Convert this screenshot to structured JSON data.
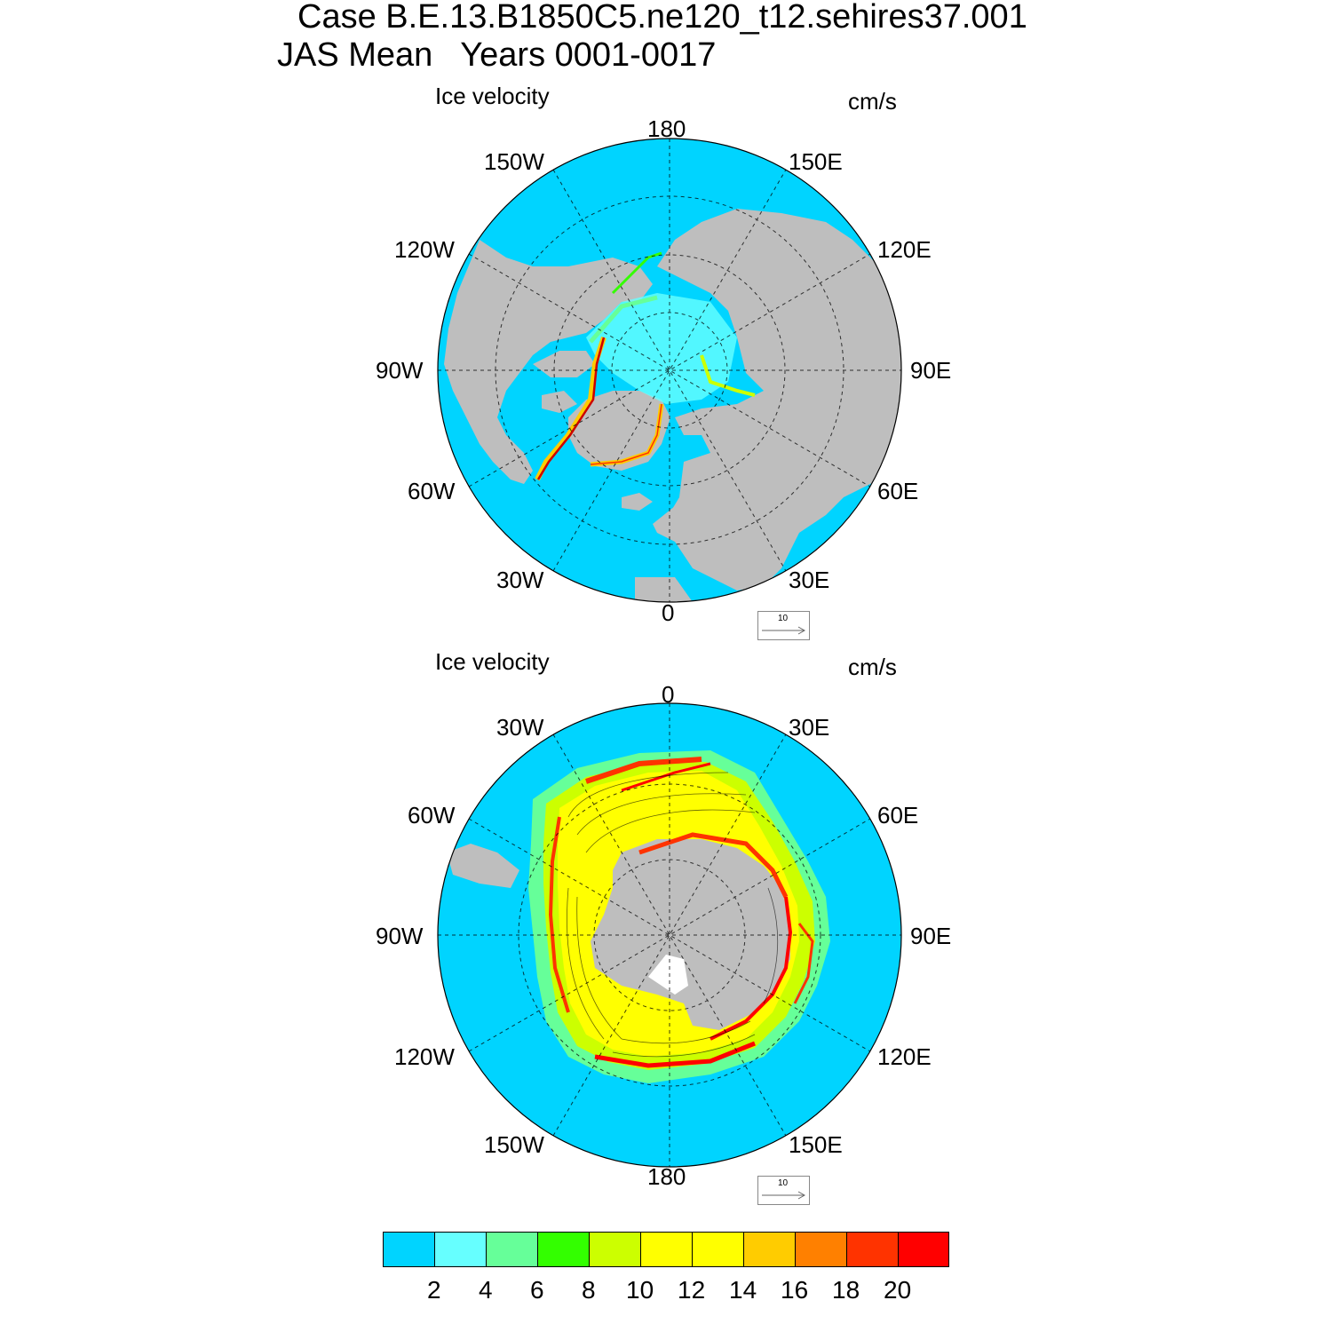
{
  "titles": {
    "line1": "Case B.E.13.B1850C5.ne120_t12.sehires37.001",
    "line2": "JAS Mean   Years 0001-0017"
  },
  "north": {
    "field_label": "Ice velocity",
    "units": "cm/s",
    "lon_labels": {
      "top": "180",
      "bottom": "0",
      "left": "90W",
      "right": "90E",
      "ul1": "150W",
      "ul2": "120W",
      "ur1": "150E",
      "ur2": "120E",
      "ll1": "60W",
      "ll2": "30W",
      "lr1": "60E",
      "lr2": "30E"
    },
    "ref_vector": "10"
  },
  "south": {
    "field_label": "Ice velocity",
    "units": "cm/s",
    "lon_labels": {
      "top": "0",
      "bottom": "180",
      "left": "90W",
      "right": "90E",
      "ul1": "30W",
      "ul2": "60W",
      "ur1": "30E",
      "ur2": "60E",
      "ll1": "120W",
      "ll2": "150W",
      "lr1": "120E",
      "lr2": "150E"
    },
    "ref_vector": "10"
  },
  "colorbar": {
    "labels": [
      "2",
      "4",
      "6",
      "8",
      "10",
      "12",
      "14",
      "16",
      "18",
      "20"
    ],
    "colors": [
      "#00d4ff",
      "#66ffff",
      "#66ff99",
      "#33ff00",
      "#ccff00",
      "#ffff00",
      "#ffff00",
      "#ffcc00",
      "#ff8000",
      "#ff3300",
      "#ff0000"
    ]
  },
  "colors": {
    "ocean": "#00d4ff",
    "land": "#bebebe"
  }
}
